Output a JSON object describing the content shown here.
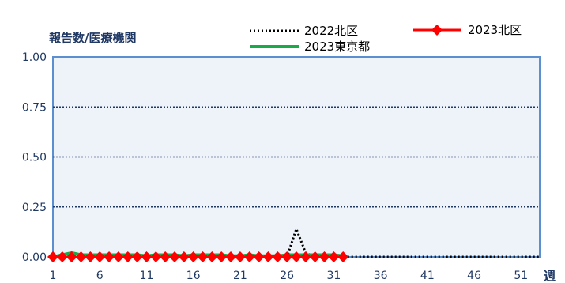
{
  "chart_data": {
    "type": "line",
    "ylabel": "報告数/医療機関",
    "xlabel": "週",
    "ylim": [
      0,
      1.0
    ],
    "xlim": [
      1,
      53
    ],
    "yticks": [
      "0.00",
      "0.25",
      "0.50",
      "0.75",
      "1.00"
    ],
    "xticks": [
      "1",
      "6",
      "11",
      "16",
      "21",
      "26",
      "31",
      "36",
      "41",
      "46",
      "51"
    ],
    "grid": "horizontal-dotted",
    "legend_position": "top",
    "series": [
      {
        "name": "2022北区",
        "style": "dotted",
        "color": "#000000",
        "x": [
          1,
          2,
          3,
          4,
          5,
          6,
          7,
          8,
          9,
          10,
          11,
          12,
          13,
          14,
          15,
          16,
          17,
          18,
          19,
          20,
          21,
          22,
          23,
          24,
          25,
          26,
          27,
          28,
          29,
          30,
          31,
          32,
          33,
          34,
          35,
          36,
          37,
          38,
          39,
          40,
          41,
          42,
          43,
          44,
          45,
          46,
          47,
          48,
          49,
          50,
          51,
          52,
          53
        ],
        "values": [
          0,
          0,
          0,
          0,
          0,
          0,
          0,
          0,
          0,
          0,
          0,
          0,
          0,
          0,
          0,
          0,
          0,
          0,
          0,
          0,
          0,
          0,
          0,
          0,
          0,
          0,
          0.14,
          0.02,
          0,
          0,
          0,
          0,
          0,
          0,
          0,
          0,
          0,
          0,
          0,
          0,
          0,
          0,
          0,
          0,
          0,
          0,
          0,
          0,
          0,
          0,
          0,
          0,
          0
        ]
      },
      {
        "name": "2023東京都",
        "style": "solid",
        "color": "#1aaa4a",
        "x": [
          1,
          2,
          3,
          4,
          5,
          6,
          7,
          8,
          9,
          10,
          11,
          12,
          13,
          14,
          15,
          16,
          17,
          18,
          19,
          20,
          21,
          22,
          23,
          24,
          25,
          26,
          27,
          28,
          29,
          30,
          31,
          32
        ],
        "values": [
          0,
          0.01,
          0.02,
          0.01,
          0.01,
          0.01,
          0.01,
          0.01,
          0.01,
          0.01,
          0.005,
          0.01,
          0.01,
          0.01,
          0.005,
          0.01,
          0.01,
          0.01,
          0.01,
          0.005,
          0.005,
          0.01,
          0.005,
          0.005,
          0.005,
          0.01,
          0.01,
          0.01,
          0.01,
          0.01,
          0.01,
          0.005
        ]
      },
      {
        "name": "2023北区",
        "style": "solid-diamond",
        "color": "#ff0000",
        "x": [
          1,
          2,
          3,
          4,
          5,
          6,
          7,
          8,
          9,
          10,
          11,
          12,
          13,
          14,
          15,
          16,
          17,
          18,
          19,
          20,
          21,
          22,
          23,
          24,
          25,
          26,
          27,
          28,
          29,
          30,
          31,
          32
        ],
        "values": [
          0,
          0,
          0,
          0,
          0,
          0,
          0,
          0,
          0,
          0,
          0,
          0,
          0,
          0,
          0,
          0,
          0,
          0,
          0,
          0,
          0,
          0,
          0,
          0,
          0,
          0,
          0,
          0,
          0,
          0,
          0,
          0
        ]
      }
    ]
  }
}
